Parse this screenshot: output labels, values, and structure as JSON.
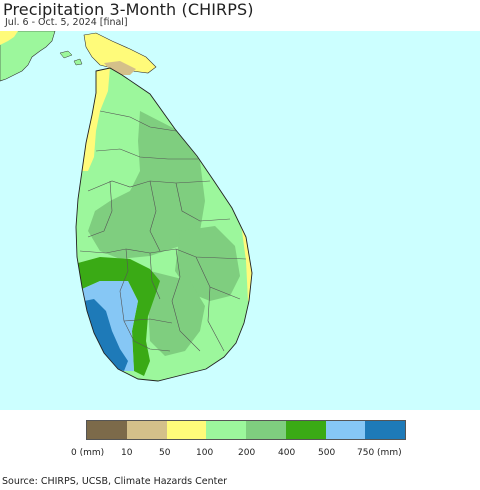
{
  "title": "Precipitation 3-Month (CHIRPS)",
  "subtitle": "Jul. 6 - Oct. 5, 2024 [final]",
  "legend": {
    "categories": [
      {
        "color": "#7c6a4a",
        "tick": "0 (mm)"
      },
      {
        "color": "#d4c08a",
        "tick": "10"
      },
      {
        "color": "#fffb7a",
        "tick": "50"
      },
      {
        "color": "#9cf79c",
        "tick": "100"
      },
      {
        "color": "#7fce7f",
        "tick": "200"
      },
      {
        "color": "#3aaa15",
        "tick": "400"
      },
      {
        "color": "#86c7f5",
        "tick": "500"
      },
      {
        "color": "#1e7ab8",
        "tick": "750 (mm)"
      }
    ]
  },
  "source": "Source: CHIRPS, UCSB, Climate Hazards Center",
  "colors": {
    "ocean": "#ccffff",
    "land_base": "#9cf79c",
    "boundary": "#555555"
  }
}
